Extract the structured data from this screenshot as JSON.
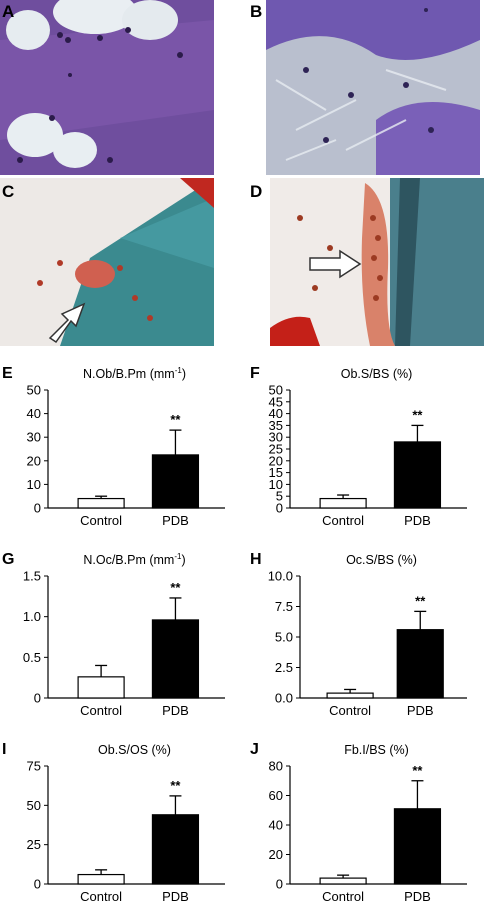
{
  "panels": {
    "A": "A",
    "B": "B",
    "C": "C",
    "D": "D"
  },
  "chart_data": [
    {
      "panel": "E",
      "type": "bar",
      "title": "N.Ob/B.Pm (mm",
      "title_sup": "-1",
      "title_end": ")",
      "categories": [
        "Control",
        "PDB"
      ],
      "values": [
        4,
        22.5
      ],
      "errors": [
        1.0,
        10.5
      ],
      "significance": [
        "",
        "**"
      ],
      "ylim": [
        0,
        50
      ],
      "yticks": [
        "0",
        "10",
        "20",
        "30",
        "40",
        "50"
      ],
      "ytick_values": [
        0,
        10,
        20,
        30,
        40,
        50
      ]
    },
    {
      "panel": "F",
      "type": "bar",
      "title": "Ob.S/BS (%)",
      "title_sup": "",
      "title_end": "",
      "categories": [
        "Control",
        "PDB"
      ],
      "values": [
        4,
        28
      ],
      "errors": [
        1.5,
        7
      ],
      "significance": [
        "",
        "**"
      ],
      "ylim": [
        0,
        50
      ],
      "yticks": [
        "0",
        "5",
        "10",
        "15",
        "20",
        "25",
        "30",
        "35",
        "40",
        "45",
        "50"
      ],
      "ytick_values": [
        0,
        5,
        10,
        15,
        20,
        25,
        30,
        35,
        40,
        45,
        50
      ]
    },
    {
      "panel": "G",
      "type": "bar",
      "title": "N.Oc/B.Pm (mm",
      "title_sup": "-1",
      "title_end": ")",
      "categories": [
        "Control",
        "PDB"
      ],
      "values": [
        0.26,
        0.96
      ],
      "errors": [
        0.14,
        0.27
      ],
      "significance": [
        "",
        "**"
      ],
      "ylim": [
        0,
        1.5
      ],
      "yticks": [
        "0",
        "0.5",
        "1.0",
        "1.5"
      ],
      "ytick_values": [
        0,
        0.5,
        1.0,
        1.5
      ]
    },
    {
      "panel": "H",
      "type": "bar",
      "title": "Oc.S/BS (%)",
      "title_sup": "",
      "title_end": "",
      "categories": [
        "Control",
        "PDB"
      ],
      "values": [
        0.4,
        5.6
      ],
      "errors": [
        0.3,
        1.5
      ],
      "significance": [
        "",
        "**"
      ],
      "ylim": [
        0,
        10
      ],
      "yticks": [
        "0.0",
        "2.5",
        "5.0",
        "7.5",
        "10.0"
      ],
      "ytick_values": [
        0,
        2.5,
        5.0,
        7.5,
        10.0
      ]
    },
    {
      "panel": "I",
      "type": "bar",
      "title": "Ob.S/OS (%)",
      "title_sup": "",
      "title_end": "",
      "categories": [
        "Control",
        "PDB"
      ],
      "values": [
        6,
        44
      ],
      "errors": [
        3,
        12
      ],
      "significance": [
        "",
        "**"
      ],
      "ylim": [
        0,
        75
      ],
      "yticks": [
        "0",
        "25",
        "50",
        "75"
      ],
      "ytick_values": [
        0,
        25,
        50,
        75
      ]
    },
    {
      "panel": "J",
      "type": "bar",
      "title": "Fb.I/BS (%)",
      "title_sup": "",
      "title_end": "",
      "categories": [
        "Control",
        "PDB"
      ],
      "values": [
        4,
        51
      ],
      "errors": [
        2,
        19
      ],
      "significance": [
        "",
        "**"
      ],
      "ylim": [
        0,
        80
      ],
      "yticks": [
        "0",
        "20",
        "40",
        "60",
        "80"
      ],
      "ytick_values": [
        0,
        20,
        40,
        60,
        80
      ]
    }
  ]
}
